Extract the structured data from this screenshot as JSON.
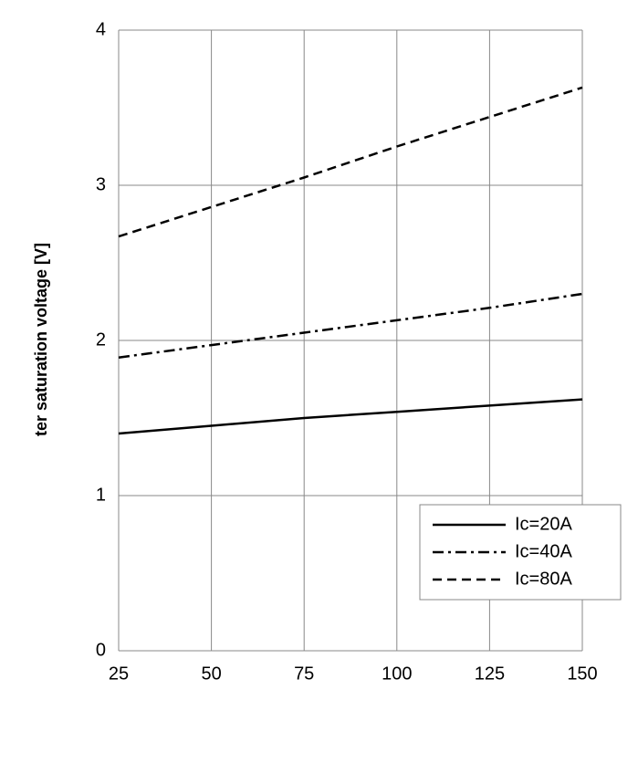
{
  "chart_data": {
    "type": "line",
    "y_label": "ter saturation voltage [V]",
    "x": [
      25,
      50,
      75,
      100,
      125,
      150
    ],
    "xlim": [
      25,
      150
    ],
    "xticks": [
      25,
      50,
      75,
      100,
      125,
      150
    ],
    "ylim": [
      0,
      4
    ],
    "yticks": [
      0,
      1,
      2,
      3,
      4
    ],
    "grid": true,
    "legend": "lower right",
    "series": [
      {
        "name": "Ic=20A",
        "color": "#000000",
        "line_style": "solid",
        "values": [
          1.4,
          1.45,
          1.5,
          1.54,
          1.58,
          1.62
        ]
      },
      {
        "name": "Ic=40A",
        "color": "#000000",
        "line_style": "dashdot",
        "values": [
          1.89,
          1.97,
          2.05,
          2.13,
          2.21,
          2.3
        ]
      },
      {
        "name": "Ic=80A",
        "color": "#000000",
        "line_style": "dashed",
        "values": [
          2.67,
          2.86,
          3.05,
          3.25,
          3.44,
          3.63
        ]
      }
    ]
  }
}
